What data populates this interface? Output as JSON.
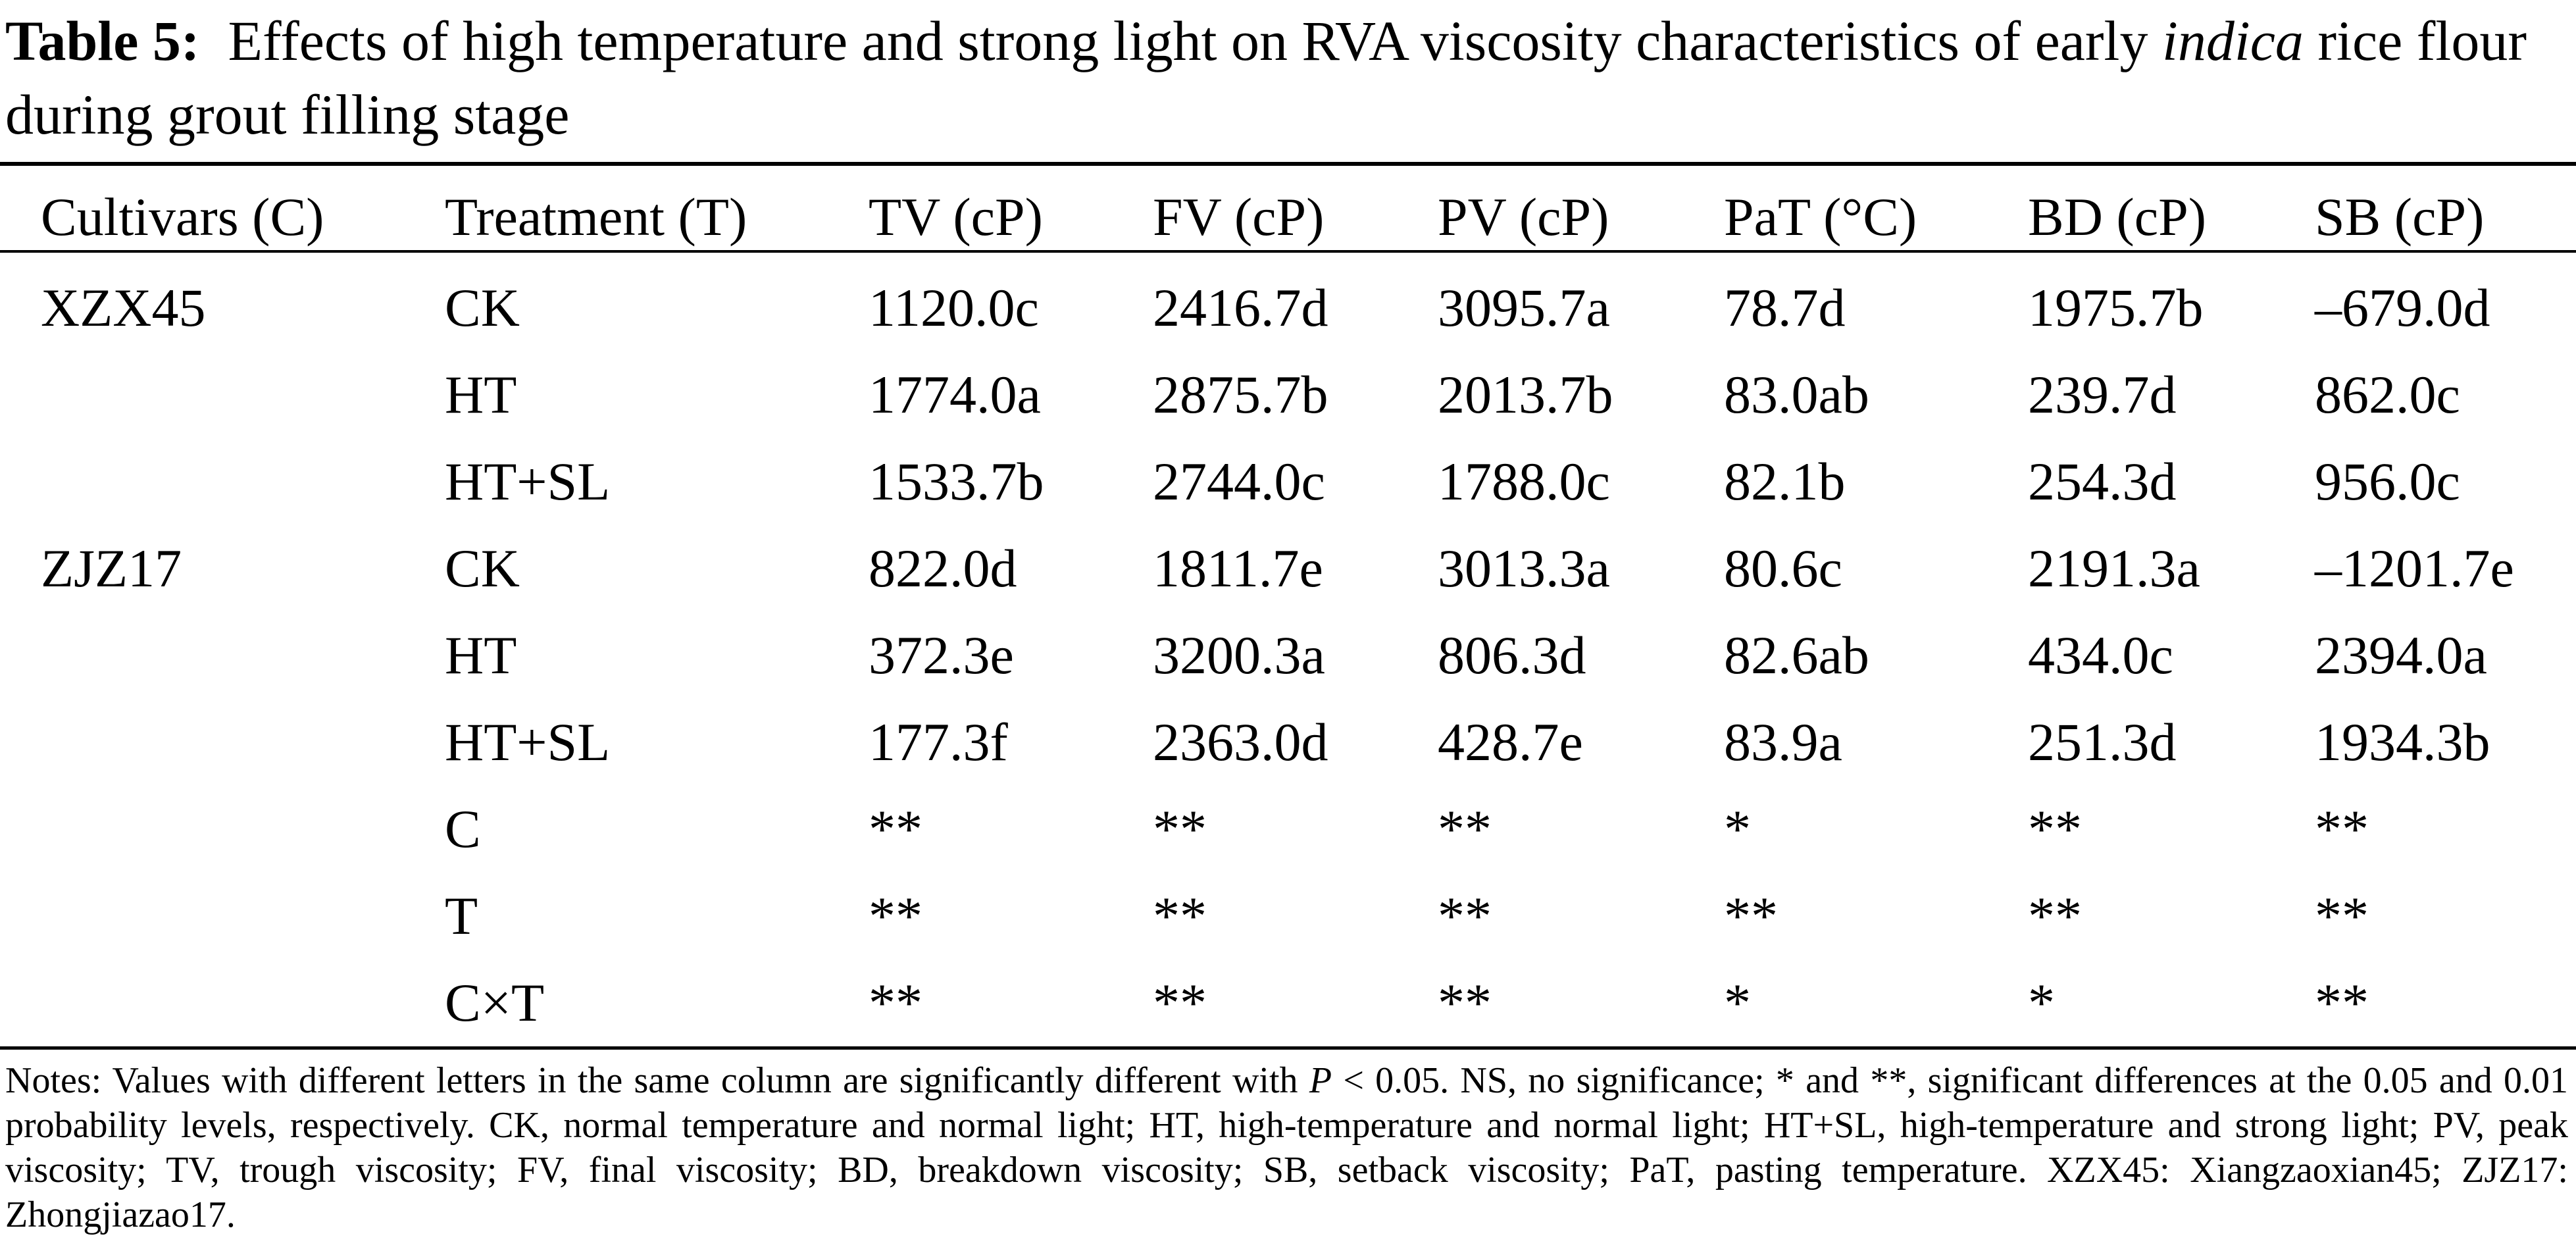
{
  "caption": {
    "label": "Table 5:",
    "text_before_italic": "Effects of high temperature and strong light on RVA viscosity characteristics of early",
    "italic": "indica",
    "text_after_italic": "rice flour during grout filling stage"
  },
  "table": {
    "headers": [
      "Cultivars (C)",
      "Treatment (T)",
      "TV (cP)",
      "FV (cP)",
      "PV (cP)",
      "PaT (°C)",
      "BD (cP)",
      "SB (cP)"
    ],
    "rows": [
      [
        "XZX45",
        "CK",
        "1120.0c",
        "2416.7d",
        "3095.7a",
        "78.7d",
        "1975.7b",
        "–679.0d"
      ],
      [
        "",
        "HT",
        "1774.0a",
        "2875.7b",
        "2013.7b",
        "83.0ab",
        "239.7d",
        "862.0c"
      ],
      [
        "",
        "HT+SL",
        "1533.7b",
        "2744.0c",
        "1788.0c",
        "82.1b",
        "254.3d",
        "956.0c"
      ],
      [
        "ZJZ17",
        "CK",
        "822.0d",
        "1811.7e",
        "3013.3a",
        "80.6c",
        "2191.3a",
        "–1201.7e"
      ],
      [
        "",
        "HT",
        "372.3e",
        "3200.3a",
        "806.3d",
        "82.6ab",
        "434.0c",
        "2394.0a"
      ],
      [
        "",
        "HT+SL",
        "177.3f",
        "2363.0d",
        "428.7e",
        "83.9a",
        "251.3d",
        "1934.3b"
      ],
      [
        "",
        "C",
        "**",
        "**",
        "**",
        "*",
        "**",
        "**"
      ],
      [
        "",
        "T",
        "**",
        "**",
        "**",
        "**",
        "**",
        "**"
      ],
      [
        "",
        "C×T",
        "**",
        "**",
        "**",
        "*",
        "*",
        "**"
      ]
    ]
  },
  "notes": {
    "before_italic": "Notes: Values with different letters in the same column are significantly different with",
    "italic": "P",
    "after_italic": "< 0.05. NS, no significance; * and **, significant differences at the 0.05 and 0.01 probability levels, respectively. CK, normal temperature and normal light; HT, high-temperature and normal light; HT+SL, high-temperature and strong light; PV, peak viscosity; TV, trough viscosity; FV, final viscosity; BD, breakdown viscosity; SB, setback viscosity; PaT, pasting temperature. XZX45: Xiangzaoxian45; ZJZ17: Zhongjiazao17."
  }
}
